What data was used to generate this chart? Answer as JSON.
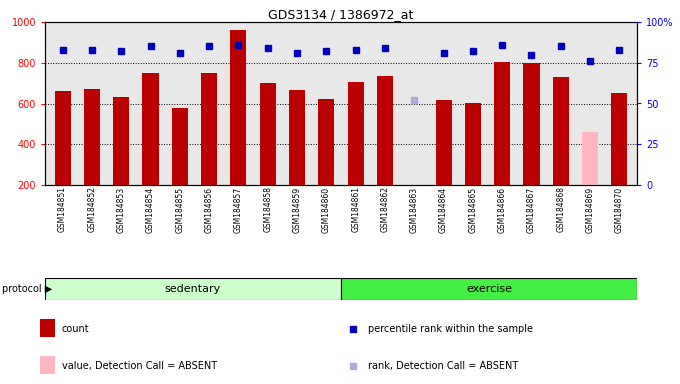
{
  "title": "GDS3134 / 1386972_at",
  "samples": [
    "GSM184851",
    "GSM184852",
    "GSM184853",
    "GSM184854",
    "GSM184855",
    "GSM184856",
    "GSM184857",
    "GSM184858",
    "GSM184859",
    "GSM184860",
    "GSM184861",
    "GSM184862",
    "GSM184863",
    "GSM184864",
    "GSM184865",
    "GSM184866",
    "GSM184867",
    "GSM184868",
    "GSM184869",
    "GSM184870"
  ],
  "count_values": [
    660,
    670,
    630,
    750,
    580,
    750,
    960,
    700,
    665,
    620,
    705,
    735,
    185,
    615,
    600,
    805,
    800,
    730,
    460,
    650
  ],
  "count_absent": [
    false,
    false,
    false,
    false,
    false,
    false,
    false,
    false,
    false,
    false,
    false,
    false,
    true,
    false,
    false,
    false,
    false,
    false,
    true,
    false
  ],
  "percentile_values": [
    83,
    83,
    82,
    85,
    81,
    85,
    86,
    84,
    81,
    82,
    83,
    84,
    52,
    81,
    82,
    86,
    80,
    85,
    76,
    83
  ],
  "percentile_absent": [
    false,
    false,
    false,
    false,
    false,
    false,
    false,
    false,
    false,
    false,
    false,
    false,
    true,
    false,
    false,
    false,
    false,
    false,
    false,
    false
  ],
  "bar_color_present": "#BB0000",
  "bar_color_absent": "#FFB6C1",
  "dot_color_present": "#0000BB",
  "dot_color_absent": "#AAAADD",
  "ylim_left": [
    200,
    1000
  ],
  "ylim_right": [
    0,
    100
  ],
  "yticks_left": [
    200,
    400,
    600,
    800,
    1000
  ],
  "yticks_right": [
    0,
    25,
    50,
    75,
    100
  ],
  "grid_values": [
    400,
    600,
    800
  ],
  "sedentary_color": "#CCFFCC",
  "exercise_color": "#44EE44",
  "figsize": [
    6.8,
    3.84
  ],
  "dpi": 100
}
